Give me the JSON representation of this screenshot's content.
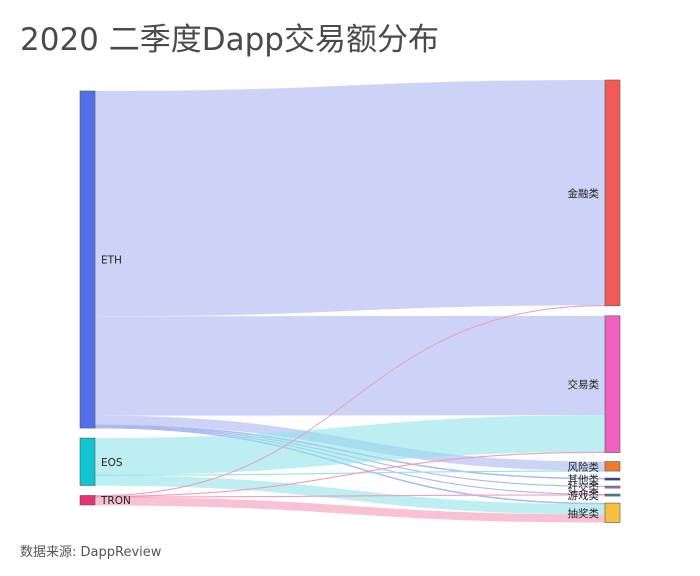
{
  "title": "2020 二季度Dapp交易额分布",
  "source": "数据来源: DappReview",
  "chart_data": {
    "type": "sankey",
    "title": "2020 二季度Dapp交易额分布",
    "source_nodes": [
      {
        "name": "ETH",
        "color": "#5470e8"
      },
      {
        "name": "EOS",
        "color": "#12c3d1"
      },
      {
        "name": "TRON",
        "color": "#e8336e"
      }
    ],
    "target_nodes": [
      {
        "name": "金融类",
        "color": "#f25a5a"
      },
      {
        "name": "交易类",
        "color": "#f060c0"
      },
      {
        "name": "风险类",
        "color": "#f07a2a"
      },
      {
        "name": "其他类",
        "color": "#2a3a9a"
      },
      {
        "name": "社交类",
        "color": "#a070d0"
      },
      {
        "name": "游戏类",
        "color": "#2a8aa0"
      },
      {
        "name": "抽奖类",
        "color": "#f5c040"
      }
    ],
    "links": [
      {
        "source": "ETH",
        "target": "金融类",
        "value": 220
      },
      {
        "source": "ETH",
        "target": "交易类",
        "value": 97
      },
      {
        "source": "ETH",
        "target": "风险类",
        "value": 9
      },
      {
        "source": "ETH",
        "target": "其他类",
        "value": 1
      },
      {
        "source": "ETH",
        "target": "社交类",
        "value": 0.6
      },
      {
        "source": "ETH",
        "target": "游戏类",
        "value": 0.5
      },
      {
        "source": "ETH",
        "target": "抽奖类",
        "value": 1
      },
      {
        "source": "EOS",
        "target": "交易类",
        "value": 36
      },
      {
        "source": "EOS",
        "target": "风险类",
        "value": 0.3
      },
      {
        "source": "EOS",
        "target": "抽奖类",
        "value": 10
      },
      {
        "source": "TRON",
        "target": "金融类",
        "value": 0.5
      },
      {
        "source": "TRON",
        "target": "交易类",
        "value": 0.5
      },
      {
        "source": "TRON",
        "target": "游戏类",
        "value": 0.3
      },
      {
        "source": "TRON",
        "target": "抽奖类",
        "value": 8
      }
    ]
  }
}
